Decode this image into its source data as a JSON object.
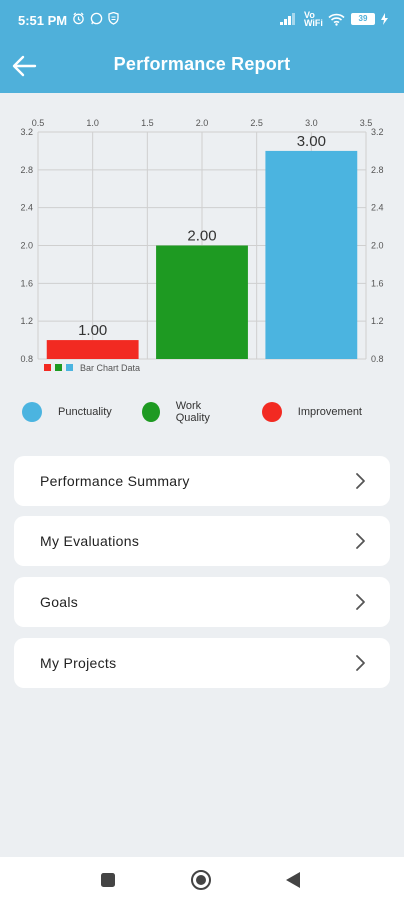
{
  "status": {
    "time": "5:51 PM",
    "battery": "39",
    "vowifi": "Vo WiFi"
  },
  "header": {
    "title": "Performance Report",
    "back_icon": "arrow-left-icon"
  },
  "chart_data": {
    "type": "bar",
    "x_positions": [
      1.0,
      2.0,
      3.0
    ],
    "values": [
      1.0,
      2.0,
      3.0
    ],
    "data_labels": [
      "1.00",
      "2.00",
      "3.00"
    ],
    "colors": [
      "#F22A22",
      "#1E9A22",
      "#4BB4E0"
    ],
    "series_names": [
      "Improvement",
      "Work Quality",
      "Punctuality"
    ],
    "xlim": [
      0.5,
      3.5
    ],
    "ylim": [
      0.8,
      3.2
    ],
    "x_ticks": [
      "0.5",
      "1.0",
      "1.5",
      "2.0",
      "2.5",
      "3.0",
      "3.5"
    ],
    "y_ticks": [
      "0.8",
      "1.2",
      "1.6",
      "2.0",
      "2.4",
      "2.8",
      "3.2"
    ],
    "legend_label": "Bar Chart Data",
    "grid": true
  },
  "legend": [
    {
      "label": "Punctuality",
      "color": "#4BB4E0"
    },
    {
      "label": "Work Quality",
      "color": "#1E9A22"
    },
    {
      "label": "Improvement",
      "color": "#F22A22"
    }
  ],
  "menu": [
    {
      "label": "Performance Summary",
      "icon": "chevron-right-icon"
    },
    {
      "label": "My Evaluations",
      "icon": "chevron-right-icon"
    },
    {
      "label": "Goals",
      "icon": "chevron-right-icon"
    },
    {
      "label": "My Projects",
      "icon": "chevron-right-icon"
    }
  ],
  "navbar": {
    "icons": [
      "recent-apps-icon",
      "home-icon",
      "back-icon"
    ]
  }
}
